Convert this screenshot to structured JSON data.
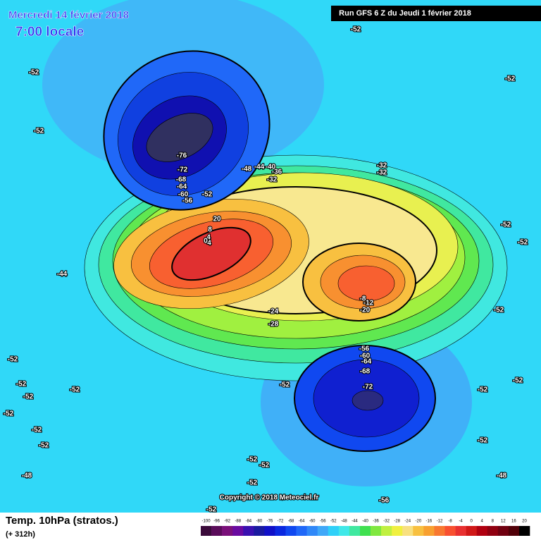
{
  "header": {
    "date": "Mercredi 14 février 2018",
    "time": "7:00 locale",
    "run": "Run GFS 6 Z du Jeudi 1 février 2018"
  },
  "copyright": "Copyright © 2018 Meteociel.fr",
  "footer": {
    "title": "Temp. 10hPa (stratos.)",
    "lead": "(+ 312h)"
  },
  "contour_labels": [
    -52,
    -52,
    -52,
    -76,
    -72,
    -68,
    -64,
    -60,
    -56,
    -52,
    -48,
    -44,
    -40,
    -36,
    -32,
    -32,
    -32,
    -52,
    -52,
    -52,
    -44,
    -24,
    -28,
    -8,
    -12,
    -20,
    -56,
    -60,
    -64,
    -68,
    -72,
    -52,
    -52,
    -52,
    -52,
    -52,
    -52,
    -52,
    -52,
    -48,
    -52,
    -52,
    -52,
    -48,
    -52,
    -52,
    -52,
    -56,
    -52,
    -52,
    20,
    8,
    4,
    0,
    4
  ],
  "legend": {
    "ticks": [
      -100,
      -96,
      -92,
      -88,
      -84,
      -80,
      -76,
      -72,
      -68,
      -64,
      -60,
      -56,
      -52,
      -48,
      -44,
      -40,
      -36,
      -32,
      -28,
      -24,
      -20,
      -16,
      -12,
      -8,
      -4,
      0,
      4,
      8,
      12,
      16,
      20
    ],
    "colors": [
      "#3a0a3a",
      "#5a0c5a",
      "#7a107a",
      "#6a0aa0",
      "#3a10b0",
      "#1a1aa0",
      "#1010c8",
      "#0a28e0",
      "#1048f0",
      "#2068f8",
      "#3088f8",
      "#40a8f8",
      "#30d0f8",
      "#40e8e8",
      "#40e8a0",
      "#40e050",
      "#80e840",
      "#c0f040",
      "#f0f040",
      "#f8e080",
      "#f8c040",
      "#f8a030",
      "#f87830",
      "#f85030",
      "#e83030",
      "#d01818",
      "#b00010",
      "#900010",
      "#700010",
      "#500008",
      "#000000"
    ]
  }
}
